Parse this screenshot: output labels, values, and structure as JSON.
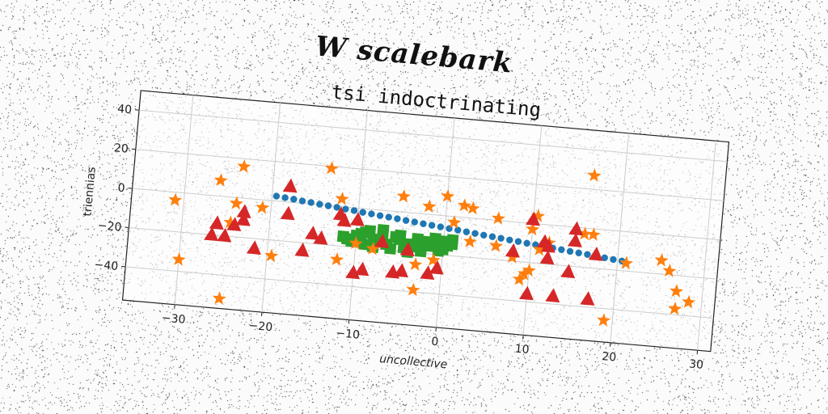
{
  "figure": {
    "suptitle": "W scalebark"
  },
  "chart_data": {
    "type": "scatter",
    "title": "tsi indoctrinating",
    "xlabel": "uncollective",
    "ylabel": "triennias",
    "xlim": [
      -36,
      31.5
    ],
    "ylim": [
      -57,
      50
    ],
    "xticks": [
      -30,
      -20,
      -10,
      0,
      10,
      20,
      30
    ],
    "yticks": [
      -40,
      -20,
      0,
      20,
      40
    ],
    "grid": true,
    "series": [
      {
        "marker": "circle",
        "color": "#1f77b4",
        "x": [
          -19.5,
          -18.5,
          -17.5,
          -16.5,
          -15.5,
          -14.5,
          -13.5,
          -12.5,
          -11.5,
          -10.5,
          -9.5,
          -8.5,
          -7.5,
          -6.5,
          -5.5,
          -4.5,
          -3.5,
          -2.5,
          -1.5,
          -0.5,
          0.5,
          1.5,
          2.5,
          3.5,
          4.5,
          5.5,
          6.5,
          7.5,
          8.5,
          9.5,
          10.5,
          11.5,
          12.5,
          13.5,
          14.5,
          15.5,
          16.5,
          17.5,
          18.5,
          19.5,
          20.5
        ],
        "y": [
          2.5,
          2.1,
          1.7,
          1.2,
          0.8,
          0.3,
          -0.1,
          -0.5,
          -1.0,
          -1.4,
          -1.9,
          -2.3,
          -2.8,
          -3.2,
          -3.6,
          -4.1,
          -4.5,
          -5.0,
          -5.4,
          -5.8,
          -6.3,
          -6.7,
          -7.2,
          -7.6,
          -8.1,
          -8.5,
          -8.9,
          -9.4,
          -9.8,
          -10.3,
          -10.7,
          -11.1,
          -11.6,
          -12.0,
          -12.5,
          -12.9,
          -13.3,
          -13.8,
          -14.2,
          -14.7,
          -15.1
        ]
      },
      {
        "marker": "triangle",
        "color": "#d62728",
        "x": [
          -25,
          -24,
          -23,
          -23,
          -21.5,
          -18,
          -18,
          -16,
          -15,
          -11.5,
          -10,
          -9,
          -7,
          -5.5,
          -4.5,
          -1.5,
          -0.5,
          8,
          10,
          11.5,
          10,
          12,
          12,
          13,
          14.5,
          15,
          15,
          17,
          17.5,
          -10,
          -26.5,
          -26,
          -12,
          -14,
          -4
        ],
        "y": [
          -20,
          -14,
          -11,
          -7,
          -25,
          8,
          -6,
          -24,
          -15,
          -7,
          -6,
          -31,
          -16,
          -31,
          -30,
          -30,
          -27,
          -15,
          -36,
          -9,
          2,
          -11,
          -17,
          -36,
          -23,
          -1,
          -7,
          -36,
          -13,
          -33,
          -20,
          -14,
          -4,
          -17,
          -19
        ]
      },
      {
        "marker": "star",
        "color": "#ff7f0e",
        "x": [
          -31,
          -30,
          -25,
          -24.5,
          -23.5,
          -21,
          -19.5,
          -13.5,
          -12,
          -12,
          -10,
          -8,
          -5,
          -3,
          -2,
          -1,
          0,
          1,
          2,
          3,
          3,
          6,
          6,
          8,
          9,
          9.5,
          10,
          10,
          10.5,
          11,
          12,
          16,
          16.5,
          17,
          19,
          21,
          25,
          26,
          27,
          27,
          28.5,
          -26,
          -24,
          -3
        ],
        "y": [
          -4,
          -34,
          -52,
          -13,
          16,
          -4,
          -28,
          19,
          -27,
          4,
          -18,
          -20,
          8,
          -39,
          4,
          -23,
          10,
          -3,
          6,
          5,
          -12,
          1,
          -13,
          -18,
          -29,
          -26,
          -3,
          -24,
          4,
          -13,
          -9,
          -3,
          27,
          -3,
          -46,
          -16,
          -13,
          -18,
          -28,
          -37,
          -33,
          8,
          -3,
          -26
        ]
      },
      {
        "marker": "square",
        "color": "#2ca02c",
        "x": [
          -11.5,
          -10.5,
          -10,
          -9.5,
          -9,
          -8.5,
          -8,
          -7.5,
          -7,
          -6.5,
          -6,
          -5.5,
          -5,
          -4.5,
          -4,
          -3.5,
          -3,
          -2.5,
          -2,
          -1.5,
          -1,
          -0.5,
          0,
          0.5,
          1,
          -11,
          -9,
          -7,
          -5,
          -3,
          -1,
          1,
          -8,
          -4,
          0
        ],
        "y": [
          -15,
          -17,
          -14,
          -13,
          -18,
          -11,
          -15,
          -16,
          -12,
          -17,
          -19,
          -13,
          -14,
          -18,
          -16,
          -17,
          -15,
          -19,
          -14,
          -16,
          -12,
          -18,
          -13,
          -15,
          -14,
          -16,
          -12,
          -10,
          -12,
          -13,
          -14,
          -12,
          -19,
          -20,
          -17
        ]
      }
    ]
  }
}
